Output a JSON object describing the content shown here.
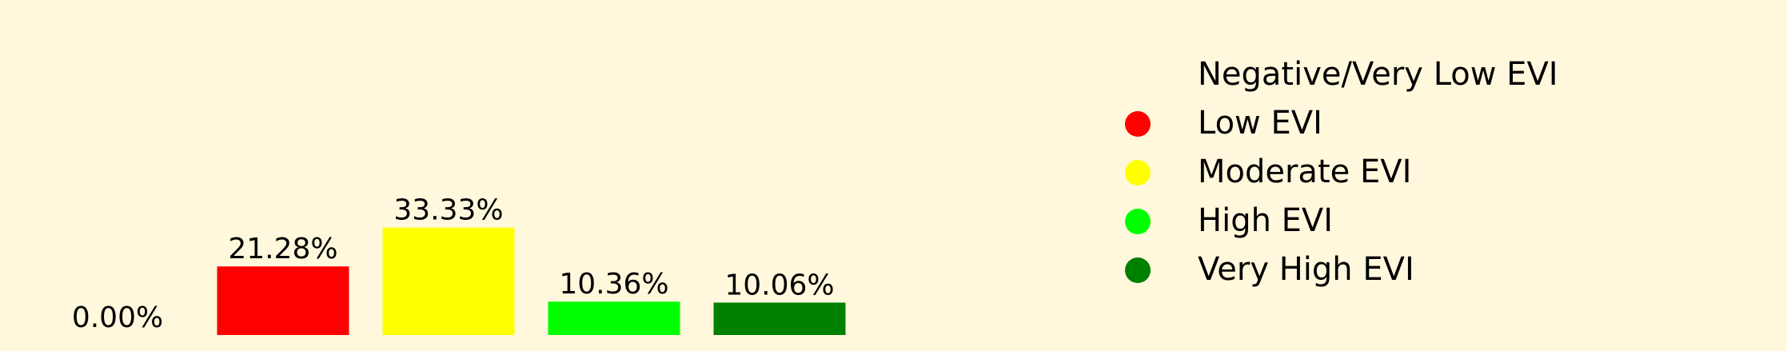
{
  "chart_data": {
    "type": "bar",
    "categories": [
      "Negative/Very Low EVI",
      "Low EVI",
      "Moderate EVI",
      "High EVI",
      "Very High EVI"
    ],
    "values": [
      0.0,
      21.28,
      33.33,
      10.36,
      10.06
    ],
    "value_labels": [
      "0.00%",
      "21.28%",
      "33.33%",
      "10.36%",
      "10.06%"
    ],
    "colors": [
      "#fff8dc",
      "#ff0000",
      "#ffff00",
      "#00ff00",
      "#008000"
    ],
    "legend": {
      "placement": "right",
      "entries": [
        {
          "label": "Negative/Very Low EVI",
          "color": "#fff8dc"
        },
        {
          "label": "Low EVI",
          "color": "#ff0000"
        },
        {
          "label": "Moderate EVI",
          "color": "#ffff00"
        },
        {
          "label": "High EVI",
          "color": "#00ff00"
        },
        {
          "label": "Very High EVI",
          "color": "#008000"
        }
      ]
    },
    "background": "#fff8dc",
    "grid": false,
    "axes_visible": false
  }
}
